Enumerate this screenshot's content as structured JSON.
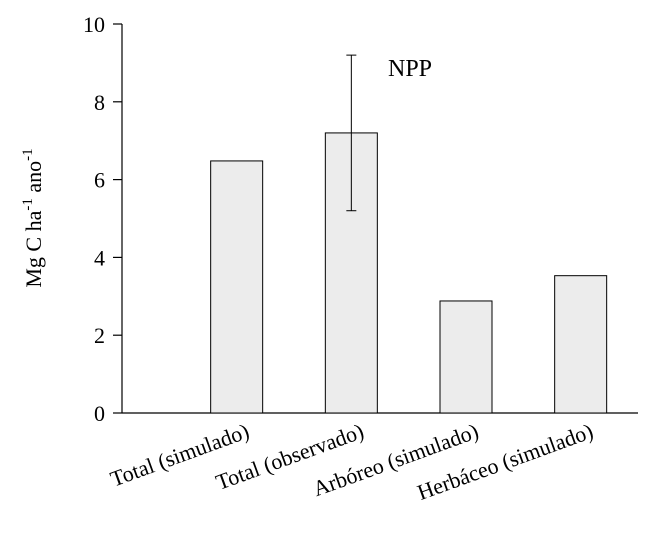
{
  "chart_data": {
    "type": "bar",
    "categories": [
      "Total (simulado)",
      "Total (observado)",
      "Arbóreo (simulado)",
      "Herbáceo (simulado)"
    ],
    "values": [
      6.48,
      7.2,
      2.88,
      3.53
    ],
    "error_bars": [
      null,
      {
        "low": 5.2,
        "high": 9.2
      },
      null,
      null
    ],
    "annotation": "NPP",
    "ylabel": {
      "base": "Mg C ha",
      "sup1": "-1",
      "mid": " ano",
      "sup2": "-1"
    },
    "ylim": [
      0,
      10
    ],
    "yticks": [
      0,
      2,
      4,
      6,
      8,
      10
    ],
    "grid": false,
    "legend": "none",
    "bar_color": "#ececec",
    "edge_color": "#000000"
  }
}
